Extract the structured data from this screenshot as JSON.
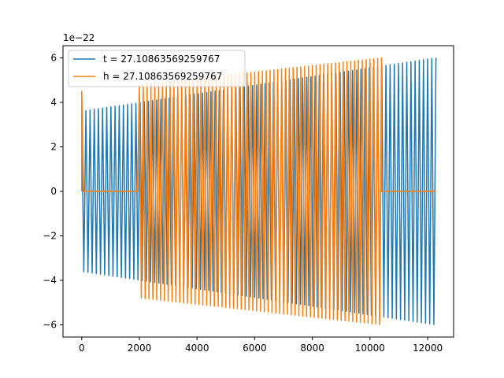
{
  "chart_data": {
    "type": "line",
    "title": "",
    "xlabel": "",
    "ylabel": "",
    "y_offset_label": "1e−22",
    "xlim": [
      -650,
      12900
    ],
    "ylim": [
      -6.55,
      6.55
    ],
    "x_ticks": [
      0,
      2000,
      4000,
      6000,
      8000,
      10000,
      12000
    ],
    "x_tick_labels": [
      "0",
      "2000",
      "4000",
      "6000",
      "8000",
      "10000",
      "12000"
    ],
    "y_ticks": [
      -6,
      -4,
      -2,
      0,
      2,
      4,
      6
    ],
    "y_tick_labels": [
      "−6",
      "−4",
      "−2",
      "0",
      "2",
      "4",
      "6"
    ],
    "grid": false,
    "legend_position": "top-left",
    "series": [
      {
        "name": "t = 27.10863569259767",
        "color": "#1f77b4",
        "kind": "chirp-oscillation",
        "x_range": [
          0,
          12288
        ],
        "amplitude_start": 3.6,
        "amplitude_end": 6.0,
        "visible_cycles": 85,
        "units": "1e-22"
      },
      {
        "name": "h = 27.10863569259767",
        "color": "#ff7f0e",
        "kind": "chirp-oscillation-with-gaps",
        "x_range": [
          0,
          10400
        ],
        "amplitude_start": 4.5,
        "amplitude_end": 6.0,
        "visible_cycles": 78,
        "flat_segments": [
          [
            60,
            1950
          ],
          [
            10430,
            12288
          ]
        ],
        "units": "1e-22"
      }
    ]
  }
}
